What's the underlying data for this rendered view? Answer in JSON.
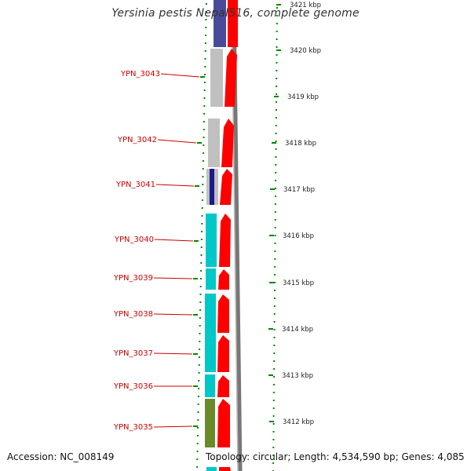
{
  "title": "Yersinia pestis Nepal516, complete genome",
  "footer": {
    "accession": "Accession: NC_008149",
    "summary": "Topology: circular; Length: 4,534,590 bp; Genes: 4,085"
  },
  "colors": {
    "forward_cds": "#ff0000",
    "gene_label": "#cc0000",
    "gray_gene": "#c0c0c0",
    "navy_gene": "#4a4a9a",
    "dark_blue_gene": "#1a1a8a",
    "cyan_gene": "#00c8c8",
    "olive_gene": "#6b8a2a",
    "tick_green": "#008800"
  },
  "scale": [
    {
      "label": "3421 kbp"
    },
    {
      "label": "3420 kbp"
    },
    {
      "label": "3419 kbp"
    },
    {
      "label": "3418 kbp"
    },
    {
      "label": "3417 kbp"
    },
    {
      "label": "3416 kbp"
    },
    {
      "label": "3415 kbp"
    },
    {
      "label": "3414 kbp"
    },
    {
      "label": "3413 kbp"
    },
    {
      "label": "3412 kbp"
    }
  ],
  "genes": [
    {
      "name": "YPN_3043"
    },
    {
      "name": "YPN_3042"
    },
    {
      "name": "YPN_3041"
    },
    {
      "name": "YPN_3040"
    },
    {
      "name": "YPN_3039"
    },
    {
      "name": "YPN_3038"
    },
    {
      "name": "YPN_3037"
    },
    {
      "name": "YPN_3036"
    },
    {
      "name": "YPN_3035"
    }
  ]
}
